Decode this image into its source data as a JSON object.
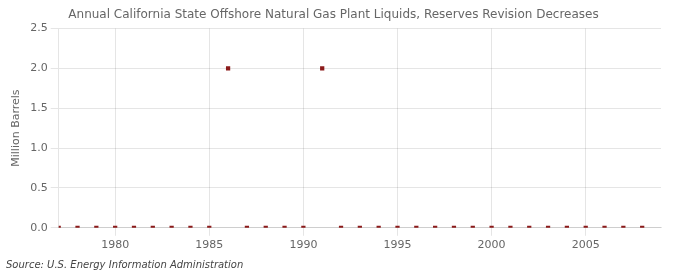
{
  "chart_data": {
    "type": "scatter",
    "title": "Annual California State Offshore Natural Gas Plant Liquids, Reserves Revision Decreases",
    "ylabel": "Million Barrels",
    "source": "Source: U.S. Energy Information Administration",
    "x": [
      1977,
      1978,
      1979,
      1980,
      1981,
      1982,
      1983,
      1984,
      1985,
      1986,
      1987,
      1988,
      1989,
      1990,
      1991,
      1992,
      1993,
      1994,
      1995,
      1996,
      1997,
      1998,
      1999,
      2000,
      2001,
      2002,
      2003,
      2004,
      2005,
      2006,
      2007,
      2008
    ],
    "values": [
      0,
      0,
      0,
      0,
      0,
      0,
      0,
      0,
      0,
      2.0,
      0,
      0,
      0,
      0,
      2.0,
      0,
      0,
      0,
      0,
      0,
      0,
      0,
      0,
      0,
      0,
      0,
      0,
      0,
      0,
      0,
      0,
      0
    ],
    "color": "#8B1A1A",
    "marker": "square",
    "xlim": [
      1977,
      2009
    ],
    "xticks": [
      1980,
      1985,
      1990,
      1995,
      2000,
      2005
    ],
    "ylim": [
      0,
      2.5
    ],
    "yticks": [
      {
        "value": 0,
        "label": "0.0"
      },
      0.5,
      {
        "value": 1,
        "label": "1.0"
      },
      1.5,
      {
        "value": 2,
        "label": "2.0"
      },
      2.5
    ],
    "grid": true
  }
}
